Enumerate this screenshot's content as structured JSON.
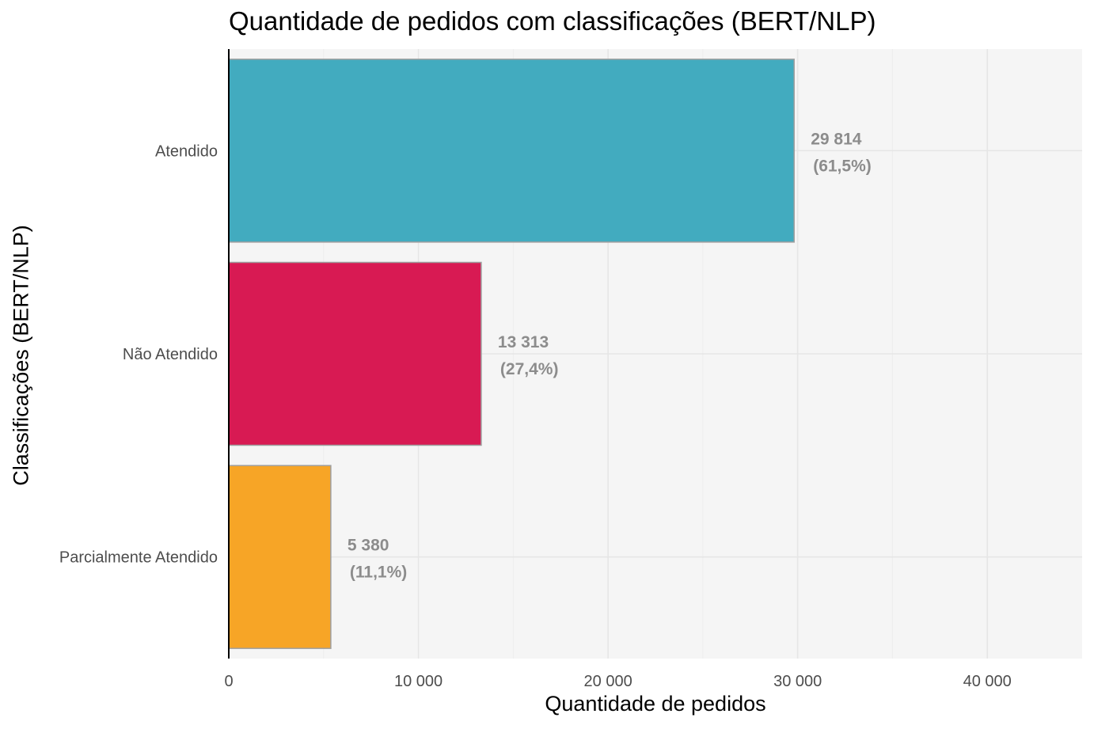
{
  "chart_data": {
    "type": "bar",
    "orientation": "horizontal",
    "title": "Quantidade de pedidos com classificações (BERT/NLP)",
    "xlabel": "Quantidade de pedidos",
    "ylabel": "Classificações (BERT/NLP)",
    "categories": [
      "Atendido",
      "Não Atendido",
      "Parcialmente Atendido"
    ],
    "values": [
      29814,
      13313,
      5380
    ],
    "value_labels": [
      "29 814",
      "13 313",
      "5 380"
    ],
    "percent_labels": [
      "(61,5%)",
      "(27,4%)",
      "(11,1%)"
    ],
    "colors": [
      "#42ABBF",
      "#D81A53",
      "#F7A526"
    ],
    "bar_outline_color": "#9E9E9E",
    "label_color": "#8C8C8C",
    "panel_background": "#F5F5F5",
    "grid_color": "#E6E6E6",
    "xlim": [
      0,
      45000
    ],
    "xticks": [
      0,
      10000,
      20000,
      30000,
      40000
    ],
    "xtick_labels": [
      "0",
      "10 000",
      "20 000",
      "30 000",
      "40 000"
    ],
    "grid": true,
    "legend": "none"
  }
}
